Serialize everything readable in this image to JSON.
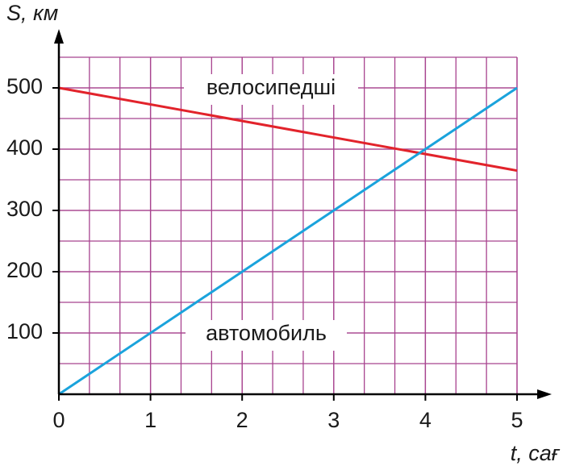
{
  "chart_data": {
    "type": "line",
    "x": [
      0,
      5
    ],
    "series": [
      {
        "name": "велосипедші",
        "color": "#e2232b",
        "values": [
          500,
          365
        ]
      },
      {
        "name": "автомобиль",
        "color": "#1aa3dc",
        "values": [
          0,
          500
        ]
      }
    ],
    "xlim": [
      0,
      5
    ],
    "ylim": [
      0,
      550
    ],
    "xticks": [
      0,
      1,
      2,
      3,
      4,
      5
    ],
    "yticks": [
      100,
      200,
      300,
      400,
      500
    ],
    "x_label": "t, сағ",
    "y_label": "S, км",
    "grid": true
  }
}
